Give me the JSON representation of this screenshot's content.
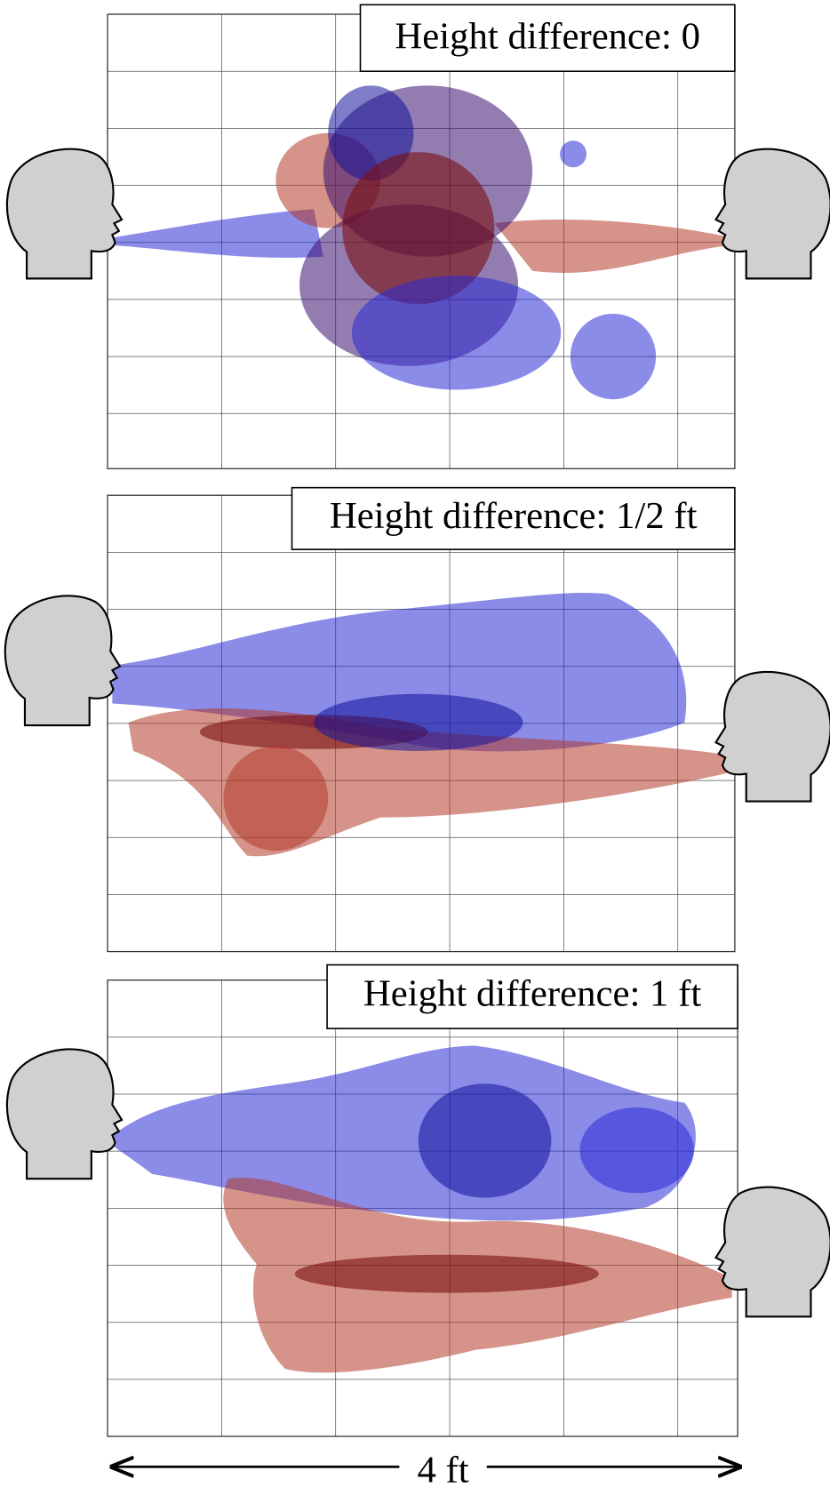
{
  "panels": [
    {
      "label": "Height difference: 0"
    },
    {
      "label": "Height difference: 1/2 ft"
    },
    {
      "label": "Height difference: 1 ft"
    }
  ],
  "scale": {
    "label": "4 ft"
  }
}
